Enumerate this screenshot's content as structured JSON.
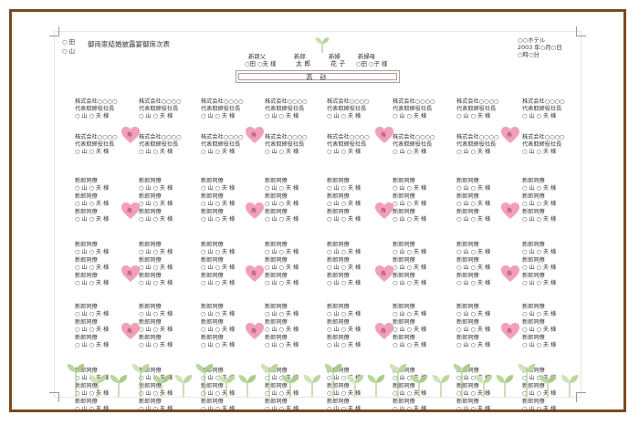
{
  "document": {
    "header": {
      "left_lines": [
        "○ 田",
        "○ 山"
      ],
      "title": "御両家結婚披露宴御席次表",
      "groom_father": "新郎父",
      "groom_father_name": "○田 ○夫 様",
      "groom_label": "新郎",
      "groom_name": "太 郎",
      "bride_label": "新婦",
      "bride_name": "花 子",
      "bride_mother": "新婦母",
      "bride_mother_name": "○田 ○子 様",
      "venue": "○○ホテル",
      "date": "2003 年○月○日",
      "time": "○時○分"
    },
    "high_table": "高 砂",
    "company_block": [
      "株式会社○○○○",
      "代表取締役社長",
      "○ 山 ○ 夫 様"
    ],
    "colleague_block": [
      "新郎同僚",
      "○ 山 ○ 夫 様"
    ],
    "heart_label": "寿"
  }
}
